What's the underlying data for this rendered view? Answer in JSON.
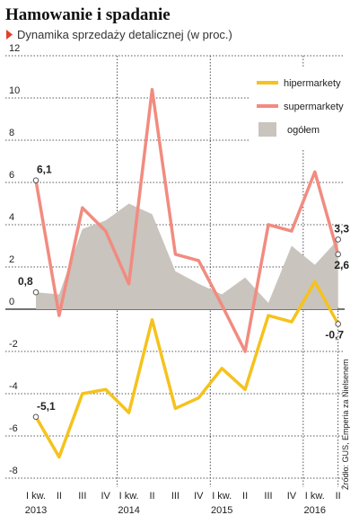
{
  "chart_data": {
    "type": "line",
    "title": "Hamowanie i spadanie",
    "subtitle": "Dynamika sprzedaży detalicznej (w proc.)",
    "source": "Źródło: GUS, Emperia za Nielsenem",
    "categories": [
      "I kw.",
      "II",
      "III",
      "IV",
      "I kw.",
      "II",
      "III",
      "IV",
      "I kw.",
      "II",
      "III",
      "IV",
      "I kw.",
      "II"
    ],
    "years": [
      "2013",
      null,
      null,
      null,
      "2014",
      null,
      null,
      null,
      "2015",
      null,
      null,
      null,
      "2016",
      null
    ],
    "ylim": [
      -8,
      12
    ],
    "yticks": [
      -8,
      -6,
      -4,
      -2,
      0,
      2,
      4,
      6,
      8,
      10,
      12
    ],
    "grid": true,
    "series": [
      {
        "name": "hipermarkety",
        "color": "#f6c21c",
        "kind": "line",
        "values": [
          -5.1,
          -7.0,
          -4.0,
          -3.8,
          -4.9,
          -0.5,
          -4.7,
          -4.2,
          -2.8,
          -3.8,
          -0.3,
          -0.6,
          1.3,
          -0.7
        ],
        "value_labels": [
          "-5,1",
          null,
          null,
          null,
          null,
          null,
          null,
          null,
          null,
          null,
          null,
          null,
          null,
          "-0,7"
        ]
      },
      {
        "name": "supermarkety",
        "color": "#f28b80",
        "kind": "line",
        "values": [
          6.1,
          -0.3,
          4.8,
          3.7,
          1.2,
          10.4,
          2.6,
          2.3,
          0.2,
          -2.0,
          4.0,
          3.7,
          6.5,
          2.6
        ],
        "value_labels": [
          "6,1",
          null,
          null,
          null,
          null,
          null,
          null,
          null,
          null,
          null,
          null,
          null,
          null,
          "2,6"
        ]
      },
      {
        "name": "ogółem",
        "color": "#c9c4be",
        "kind": "area",
        "values": [
          0.8,
          0.7,
          3.8,
          4.2,
          5.0,
          4.5,
          1.8,
          1.2,
          0.7,
          1.5,
          0.3,
          3.0,
          2.1,
          3.3
        ],
        "value_labels": [
          "0,8",
          null,
          null,
          null,
          null,
          null,
          null,
          null,
          null,
          null,
          null,
          null,
          null,
          "3,3"
        ]
      }
    ]
  }
}
